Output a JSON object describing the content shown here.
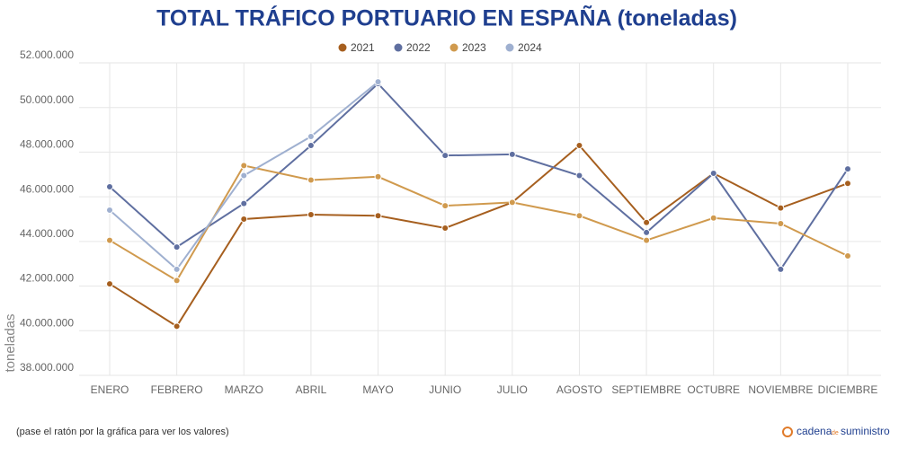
{
  "chart_data": {
    "type": "line",
    "title": "TOTAL TRÁFICO PORTUARIO EN ESPAÑA (toneladas)",
    "y_label": "toneladas",
    "note": "(pase el ratón por la gráfica para ver los valores)",
    "logo": [
      "cadena",
      "de",
      "suministro"
    ],
    "categories": [
      "ENERO",
      "FEBRERO",
      "MARZO",
      "ABRIL",
      "MAYO",
      "JUNIO",
      "JULIO",
      "AGOSTO",
      "SEPTIEMBRE",
      "OCTUBRE",
      "NOVIEMBRE",
      "DICIEMBRE"
    ],
    "series": [
      {
        "name": "2021",
        "color": "#a65f1f",
        "values": [
          42100000,
          40200000,
          45000000,
          45200000,
          45150000,
          44600000,
          45750000,
          48300000,
          44850000,
          47050000,
          45500000,
          46600000
        ]
      },
      {
        "name": "2022",
        "color": "#5f6fa0",
        "values": [
          46450000,
          43750000,
          45700000,
          48300000,
          51070000,
          47850000,
          47900000,
          46950000,
          44400000,
          47050000,
          42750000,
          47250000
        ]
      },
      {
        "name": "2023",
        "color": "#d09a4e",
        "values": [
          44050000,
          42250000,
          47400000,
          46750000,
          46900000,
          45600000,
          45750000,
          45150000,
          44050000,
          45050000,
          44800000,
          43350000
        ]
      },
      {
        "name": "2024",
        "color": "#9fb0d0",
        "values": [
          45400000,
          42750000,
          46950000,
          48700000,
          51150000,
          null,
          null,
          null,
          null,
          null,
          null,
          null
        ]
      }
    ],
    "ylim": [
      38000000,
      52000000
    ],
    "yticks": [
      {
        "value": 38000000,
        "label": "38.000.000"
      },
      {
        "value": 40000000,
        "label": "40.000.000"
      },
      {
        "value": 42000000,
        "label": "42.000.000"
      },
      {
        "value": 44000000,
        "label": "44.000.000"
      },
      {
        "value": 46000000,
        "label": "46.000.000"
      },
      {
        "value": 48000000,
        "label": "48.000.000"
      },
      {
        "value": 50000000,
        "label": "50.000.000"
      },
      {
        "value": 52000000,
        "label": "52.000.000"
      }
    ],
    "grid": true
  }
}
